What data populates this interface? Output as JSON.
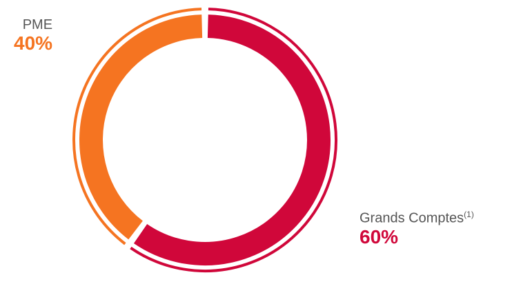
{
  "chart_data": {
    "type": "pie",
    "style": "donut",
    "slices": [
      {
        "name": "Grands Comptes",
        "footnote": "(1)",
        "value": 60,
        "value_label": "60%",
        "color": "#D0073A"
      },
      {
        "name": "PME",
        "footnote": "",
        "value": 40,
        "value_label": "40%",
        "color": "#F57421"
      }
    ]
  }
}
